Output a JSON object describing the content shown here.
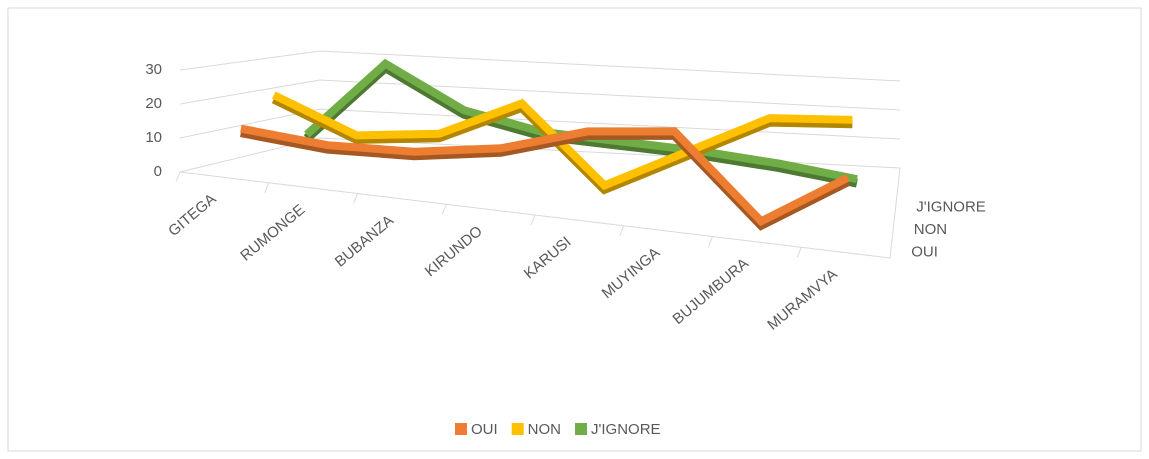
{
  "chart_data": {
    "type": "line3d",
    "categories": [
      "GITEGA",
      "RUMONGE",
      "BUBANZA",
      "KIRUNDO",
      "KARUSI",
      "MUYINGA",
      "BUJUMBURA",
      "MURAMVYA"
    ],
    "series": [
      {
        "name": "OUI",
        "color": "#ed7d31",
        "values": [
          12,
          10,
          11,
          15,
          23,
          26,
          2,
          18
        ]
      },
      {
        "name": "NON",
        "color": "#ffc000",
        "values": [
          20,
          10,
          13,
          25,
          2,
          15,
          28,
          30
        ]
      },
      {
        "name": "J'IGNORE",
        "color": "#70ad47",
        "values": [
          5,
          30,
          17,
          12,
          11,
          10,
          8,
          5
        ]
      }
    ],
    "ylim": [
      0,
      30
    ],
    "yticks": [
      0,
      10,
      20,
      30
    ],
    "grid": true,
    "legend": "bottom"
  }
}
